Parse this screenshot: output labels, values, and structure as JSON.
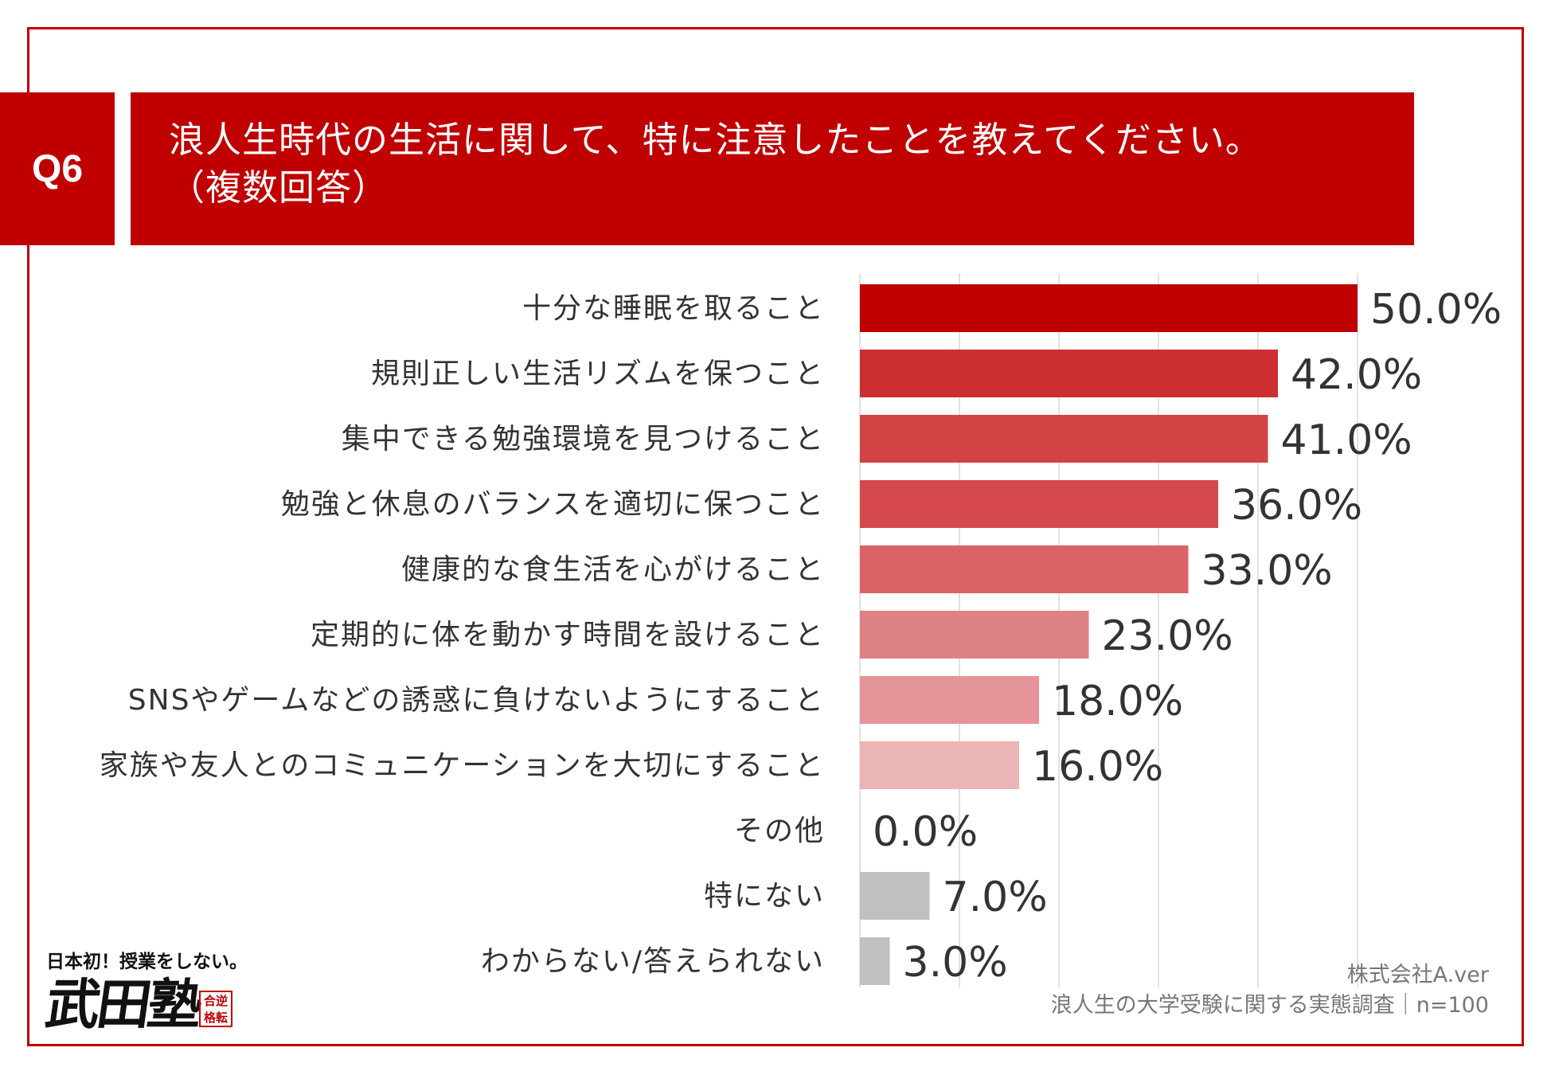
{
  "header": {
    "badge": "Q6",
    "question_line1": "浪人生時代の生活に関して、特に注意したことを教えてください。",
    "question_line2": "（複数回答）"
  },
  "source": {
    "company": "株式会社A.ver",
    "survey": "浪人生の大学受験に関する実態調査｜n=100"
  },
  "logo": {
    "tagline": "日本初！授業をしない。",
    "name": "武田塾",
    "stamp_line1": "合逆",
    "stamp_line2": "格転"
  },
  "chart_data": {
    "type": "bar",
    "orientation": "horizontal",
    "title": "",
    "xlabel": "",
    "ylabel": "",
    "xlim": [
      0,
      50
    ],
    "grid": true,
    "categories": [
      "十分な睡眠を取ること",
      "規則正しい生活リズムを保つこと",
      "集中できる勉強環境を見つけること",
      "勉強と休息のバランスを適切に保つこと",
      "健康的な食生活を心がけること",
      "定期的に体を動かす時間を設けること",
      "SNSやゲームなどの誘惑に負けないようにすること",
      "家族や友人とのコミュニケーションを大切にすること",
      "その他",
      "特にない",
      "わからない/答えられない"
    ],
    "values": [
      50.0,
      42.0,
      41.0,
      36.0,
      33.0,
      23.0,
      18.0,
      16.0,
      0.0,
      7.0,
      3.0
    ],
    "value_labels": [
      "50.0%",
      "42.0%",
      "41.0%",
      "36.0%",
      "33.0%",
      "23.0%",
      "18.0%",
      "16.0%",
      "0.0%",
      "7.0%",
      "3.0%"
    ],
    "colors": [
      "#c00000",
      "#cc2f30",
      "#d14345",
      "#d5484b",
      "#d96366",
      "#de8183",
      "#e59597",
      "#ebb4b5",
      "#ebb4b5",
      "#c0c0c0",
      "#c0c0c0"
    ]
  }
}
